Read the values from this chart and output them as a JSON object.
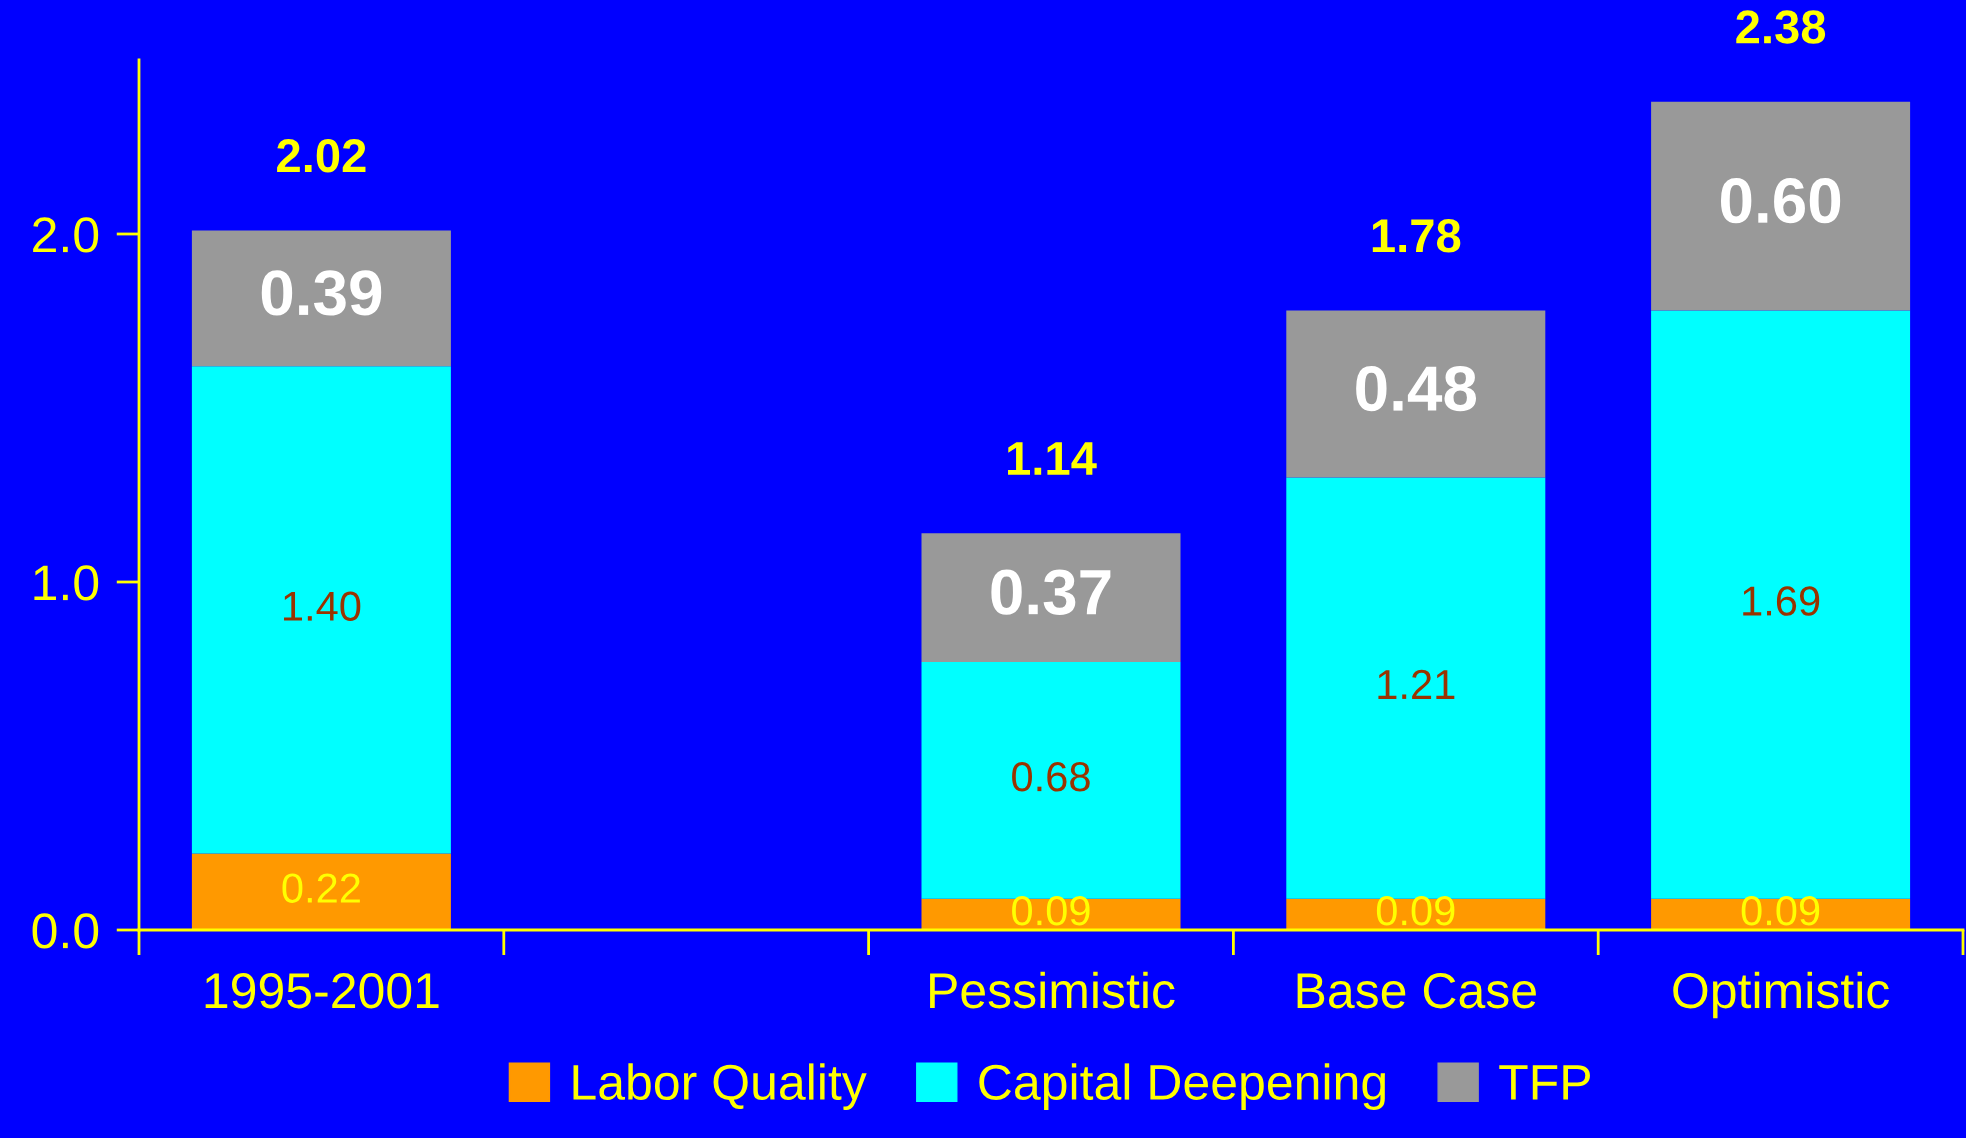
{
  "chart_data": {
    "type": "bar",
    "stacked": true,
    "categories": [
      "1995-2001",
      null,
      "Pessimistic",
      "Base Case",
      "Optimistic"
    ],
    "series": [
      {
        "name": "Labor Quality",
        "color": "#ff9900",
        "values": [
          0.22,
          null,
          0.09,
          0.09,
          0.09
        ],
        "value_labels": [
          "0.22",
          null,
          "0.09",
          "0.09",
          "0.09"
        ]
      },
      {
        "name": "Capital Deepening",
        "color": "#00ffff",
        "values": [
          1.4,
          null,
          0.68,
          1.21,
          1.69
        ],
        "value_labels": [
          "1.40",
          null,
          "0.68",
          "1.21",
          "1.69"
        ]
      },
      {
        "name": "TFP",
        "color": "#999999",
        "values": [
          0.39,
          null,
          0.37,
          0.48,
          0.6
        ],
        "value_labels": [
          "0.39",
          null,
          "0.37",
          "0.48",
          "0.60"
        ]
      }
    ],
    "totals": [
      "2.02",
      null,
      "1.14",
      "1.78",
      "2.38"
    ],
    "ylim": [
      0,
      2.5
    ],
    "yticks": [
      {
        "value": 0,
        "label": "0.0"
      },
      {
        "value": 1,
        "label": "1.0"
      },
      {
        "value": 2,
        "label": "2.0"
      }
    ],
    "grid": false,
    "legend": "bottom"
  }
}
